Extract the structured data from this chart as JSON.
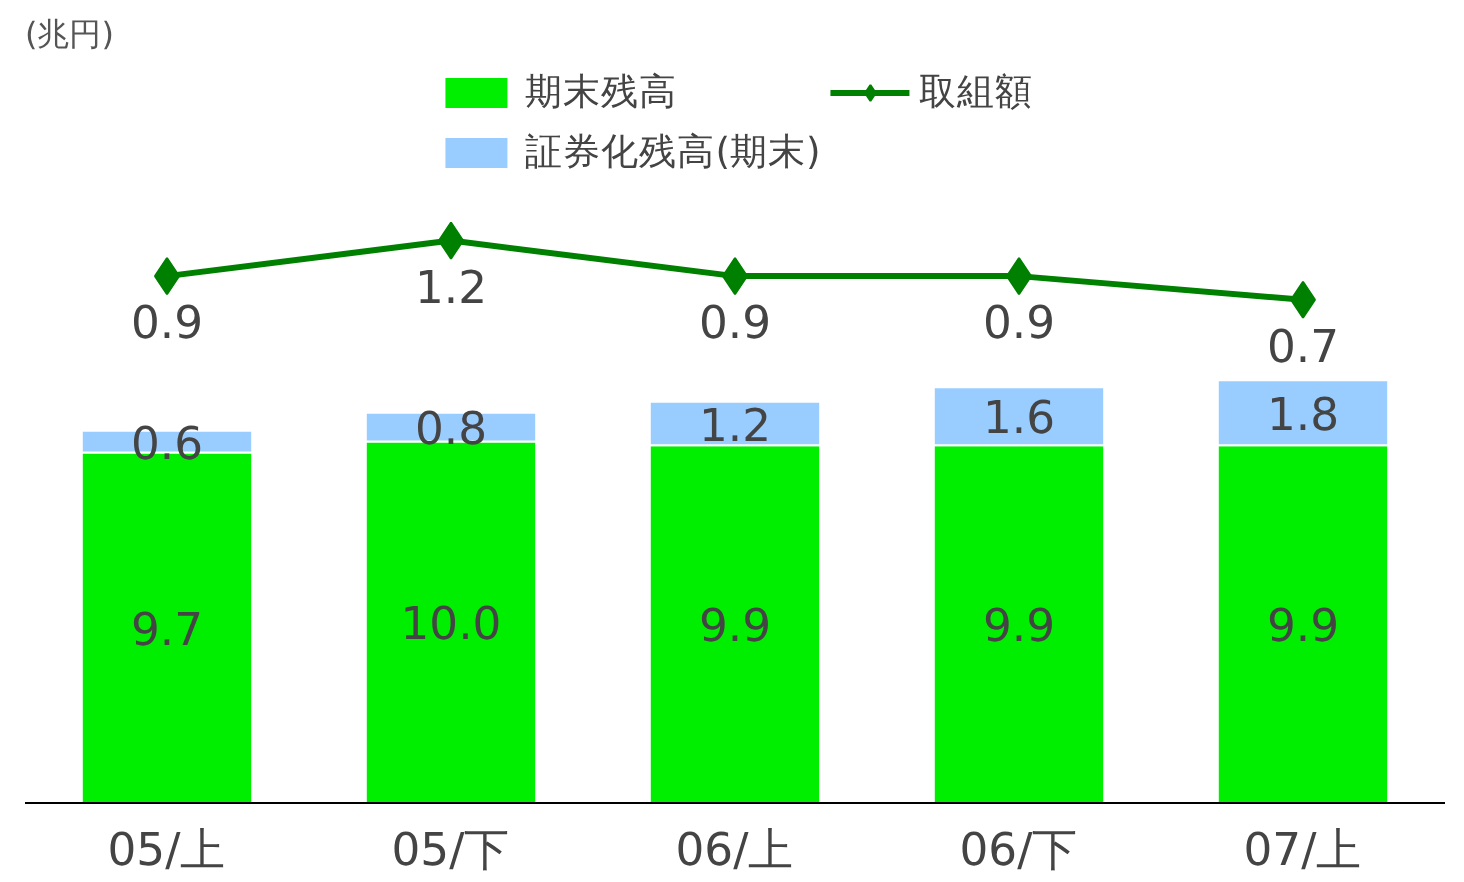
{
  "chart_data": [
    {
      "type": "bar",
      "stacked": true,
      "annotations": [
        "(兆円)"
      ],
      "categories": [
        "05/上",
        "05/下",
        "06/上",
        "06/下",
        "07/上"
      ],
      "series": [
        {
          "name": "期末残高",
          "color": "#00ee00",
          "values": [
            9.7,
            10.0,
            9.9,
            9.9,
            9.9
          ],
          "value_labels": [
            "9.7",
            "10.0",
            "9.9",
            "9.9",
            "9.9"
          ]
        },
        {
          "name": "証券化残高(期末)",
          "color": "#99ccff",
          "values": [
            0.6,
            0.8,
            1.2,
            1.6,
            1.8
          ],
          "value_labels": [
            "0.6",
            "0.8",
            "1.2",
            "1.6",
            "1.8"
          ]
        }
      ],
      "legend": "top",
      "tick_labels": "x"
    },
    {
      "type": "line",
      "categories": [
        "05/上",
        "05/下",
        "06/上",
        "06/下",
        "07/上"
      ],
      "series": [
        {
          "name": "取組額",
          "color": "#008000",
          "values": [
            0.9,
            1.2,
            0.9,
            0.9,
            0.7
          ],
          "value_labels": [
            "0.9",
            "1.2",
            "0.9",
            "0.9",
            "0.7"
          ]
        }
      ],
      "marker": "diamond",
      "line_style": "solid",
      "legend": "top",
      "tick_labels": false
    }
  ]
}
